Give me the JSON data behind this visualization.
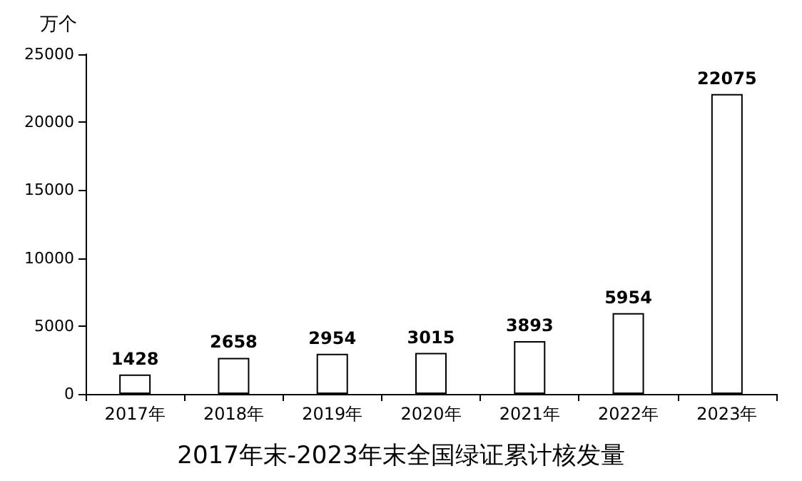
{
  "chart_data": {
    "type": "bar",
    "title": "2017年末-2023年末全国绿证累计核发量",
    "ylabel": "万个",
    "categories": [
      "2017年",
      "2018年",
      "2019年",
      "2020年",
      "2021年",
      "2022年",
      "2023年"
    ],
    "values": [
      1428,
      2658,
      2954,
      3015,
      3893,
      5954,
      22075
    ],
    "color": "#ffffff",
    "ylim": [
      0,
      25000
    ],
    "yticks": [
      0,
      5000,
      10000,
      15000,
      20000,
      25000
    ],
    "grid": false,
    "data_labels": true
  }
}
